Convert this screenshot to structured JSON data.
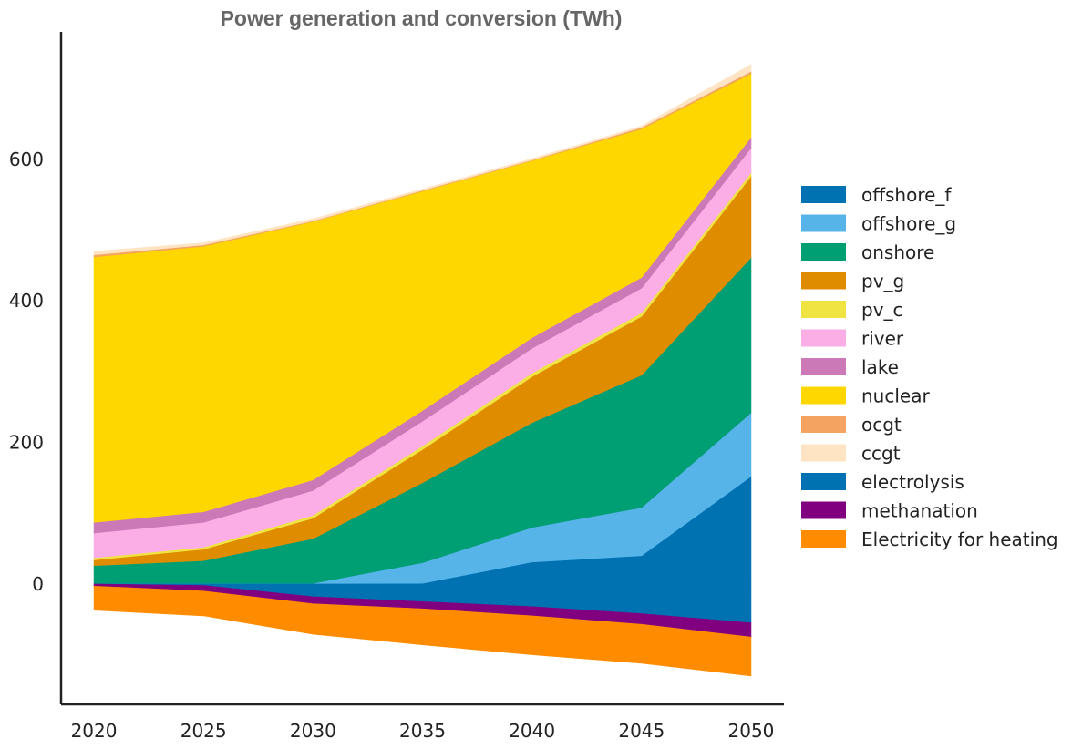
{
  "chart_data": {
    "type": "area",
    "title": "Power generation and conversion (TWh)",
    "xlabel": "",
    "ylabel": "",
    "x": [
      2020,
      2025,
      2030,
      2035,
      2040,
      2045,
      2050
    ],
    "xlim": [
      2018.5,
      2051.5
    ],
    "ylim": [
      -170,
      780
    ],
    "yticks": [
      0,
      200,
      400,
      600
    ],
    "grid": false,
    "legend_position": "right",
    "positive_series": [
      {
        "name": "offshore_f",
        "color": "#0072B2",
        "values": [
          0,
          0,
          0,
          1,
          31,
          40,
          152
        ]
      },
      {
        "name": "offshore_g",
        "color": "#56B4E9",
        "values": [
          1,
          1,
          1,
          29,
          49,
          68,
          90
        ]
      },
      {
        "name": "onshore",
        "color": "#009E73",
        "values": [
          25,
          32,
          63,
          113,
          148,
          187,
          219
        ]
      },
      {
        "name": "pv_g",
        "color": "#E08C00",
        "values": [
          8,
          16,
          29,
          47,
          65,
          83,
          115
        ]
      },
      {
        "name": "pv_c",
        "color": "#F0E442",
        "values": [
          3,
          3,
          4,
          5,
          5,
          5,
          5
        ]
      },
      {
        "name": "river",
        "color": "#FBADE6",
        "values": [
          35,
          35,
          35,
          35,
          35,
          35,
          35
        ]
      },
      {
        "name": "lake",
        "color": "#CC79B7",
        "values": [
          15,
          15,
          15,
          15,
          15,
          15,
          15
        ]
      },
      {
        "name": "nuclear",
        "color": "#FFD700",
        "values": [
          375,
          375,
          365,
          310,
          250,
          210,
          90
        ]
      },
      {
        "name": "ocgt",
        "color": "#F4A460",
        "values": [
          3,
          2,
          1,
          1,
          1,
          2,
          3
        ]
      },
      {
        "name": "ccgt",
        "color": "#FFE4C4",
        "values": [
          5,
          3,
          3,
          2,
          2,
          2,
          10
        ]
      }
    ],
    "negative_series": [
      {
        "name": "electrolysis",
        "color": "#0072B2",
        "values": [
          0,
          -2,
          -18,
          -25,
          -32,
          -42,
          -55
        ]
      },
      {
        "name": "methanation",
        "color": "#800080",
        "values": [
          -3,
          -8,
          -10,
          -10,
          -13,
          -15,
          -20
        ]
      },
      {
        "name": "Electricity for heating",
        "color": "#FF8C00",
        "values": [
          -34,
          -35,
          -43,
          -51,
          -55,
          -55,
          -55
        ]
      }
    ]
  }
}
